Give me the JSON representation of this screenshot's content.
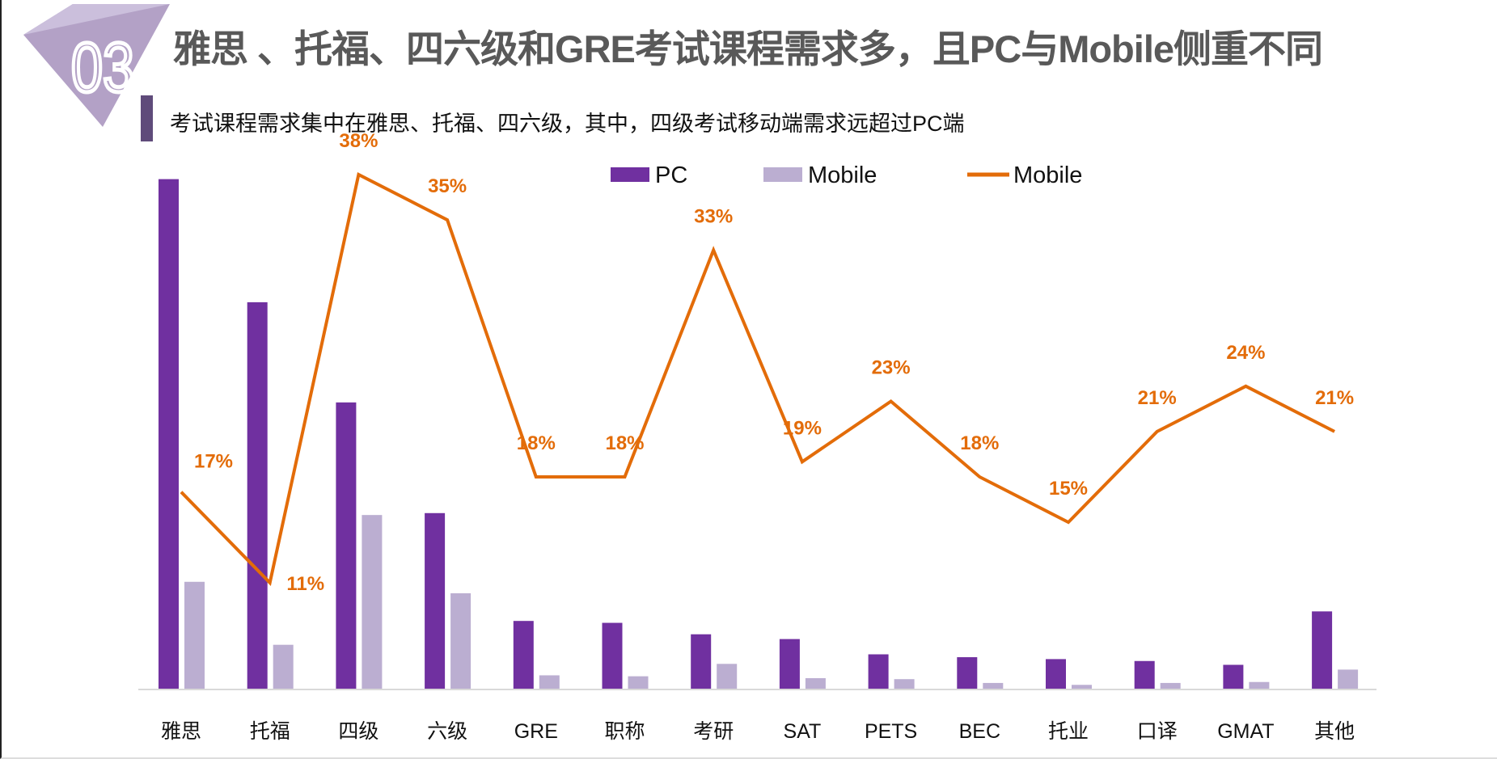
{
  "header": {
    "badge_number": "03",
    "title": "雅思 、托福、四六级和GRE考试课程需求多，且PC与Mobile侧重不同",
    "subtitle": "考试课程需求集中在雅思、托福、四六级，其中，四级考试移动端需求远超过PC端"
  },
  "colors": {
    "pc": "#7030a0",
    "mobile_bar": "#bbaed1",
    "mobile_line": "#e36c09",
    "title": "#595959",
    "badge": "#b3a1c6"
  },
  "chart_data": {
    "type": "bar+line",
    "title": "",
    "categories": [
      "雅思",
      "托福",
      "四级",
      "六级",
      "GRE",
      "职称",
      "考研",
      "SAT",
      "PETS",
      "BEC",
      "托业",
      "口译",
      "GMAT",
      "其他"
    ],
    "series": [
      {
        "name": "PC",
        "type": "bar",
        "axis": "left (hidden)",
        "values": [
          534,
          405,
          300,
          184,
          71,
          69,
          57,
          52,
          36,
          33,
          31,
          29,
          25,
          81
        ]
      },
      {
        "name": "Mobile",
        "type": "bar",
        "axis": "left (hidden)",
        "values": [
          112,
          46,
          182,
          100,
          14,
          13,
          26,
          11,
          10,
          6,
          4,
          6,
          7,
          20
        ]
      },
      {
        "name": "Mobile",
        "type": "line",
        "axis": "right (hidden)",
        "unit": "%",
        "values": [
          17,
          11,
          38,
          35,
          18,
          18,
          33,
          19,
          23,
          18,
          15,
          21,
          24,
          21
        ],
        "labels": [
          "17%",
          "11%",
          "38%",
          "35%",
          "18%",
          "18%",
          "33%",
          "19%",
          "23%",
          "18%",
          "15%",
          "21%",
          "24%",
          "21%"
        ]
      }
    ],
    "legend": {
      "position": "top-center",
      "items": [
        "PC",
        "Mobile",
        "Mobile"
      ]
    },
    "grid": false,
    "note": "bar values are relative units (no axis shown)"
  }
}
